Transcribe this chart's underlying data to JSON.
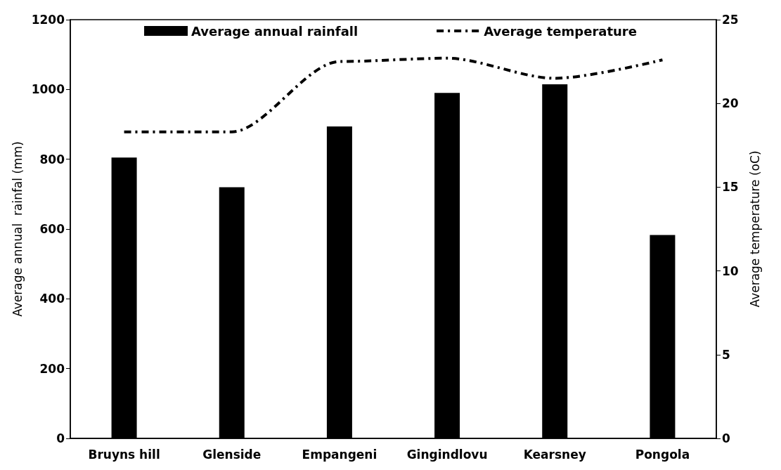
{
  "chart_data": {
    "type": "bar",
    "ylabel": "Average annual  rainfal (mm)",
    "y2label": "Average temperature (oC)",
    "categories": [
      "Bruyns hill",
      "Glenside",
      "Empangeni",
      "Gingindlovu",
      "Kearsney",
      "Pongola"
    ],
    "series": [
      {
        "name": "Average annual rainfall",
        "color": "#000000",
        "values": [
          805,
          720,
          894,
          990,
          1015,
          583
        ]
      },
      {
        "name": "Average temperature",
        "type": "line",
        "axis": "y2",
        "color": "#000000",
        "line_style": "dashed",
        "marker": "none",
        "values": [
          18.3,
          18.3,
          22.5,
          22.7,
          21.5,
          22.6
        ]
      }
    ],
    "ylim": [
      0,
      1200
    ],
    "yticks": [
      0,
      200,
      400,
      600,
      800,
      1000,
      1200
    ],
    "y2lim": [
      0,
      25
    ],
    "y2ticks": [
      0,
      5,
      10,
      15,
      20,
      25
    ],
    "grid": false,
    "legend": "top"
  }
}
